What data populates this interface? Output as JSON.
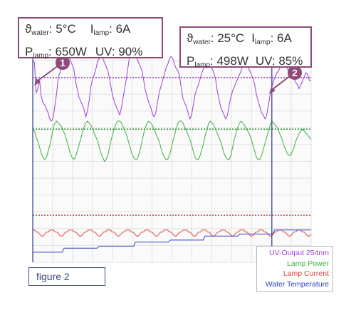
{
  "callouts": [
    {
      "theta_symbol": "ϑ",
      "theta_sub": "water",
      "theta_value": ": 5°C",
      "i_symbol": "I",
      "i_sub": "lamp",
      "i_value": ": 6A",
      "p_symbol": "P",
      "p_sub": "lamp",
      "p_value": ": 650W",
      "uv_text": "UV: 90%",
      "marker": "1"
    },
    {
      "theta_symbol": "ϑ",
      "theta_sub": "water",
      "theta_value": ": 25°C",
      "i_symbol": "I",
      "i_sub": "lamp",
      "i_value": ": 6A",
      "p_symbol": "P",
      "p_sub": "lamp",
      "p_value": ": 498W",
      "uv_text": "UV: 85%",
      "marker": "2"
    }
  ],
  "figure_label": "figure 2",
  "chart_data": {
    "type": "line",
    "title": "",
    "xlabel": "",
    "ylabel": "",
    "grid": true,
    "legend_position": "bottom-right",
    "series": [
      {
        "name": "UV-Output 254nm",
        "color": "#a040d0",
        "reference_line_color": "#a040d0",
        "values": [
          54,
          53,
          38,
          40,
          44,
          36,
          33,
          32,
          30,
          28,
          25,
          24,
          26,
          32,
          38,
          46,
          48,
          54,
          56,
          58,
          57,
          56,
          54,
          52,
          50,
          44,
          40,
          36,
          34,
          32,
          30,
          26,
          29,
          34,
          41,
          45,
          47,
          50,
          54,
          55,
          57,
          55,
          53,
          51,
          49,
          45,
          40,
          36,
          33,
          31,
          29,
          27,
          31,
          36,
          41,
          46,
          52,
          58,
          60,
          59,
          57,
          55,
          53,
          51,
          49,
          44,
          39,
          36,
          33,
          31,
          28,
          26,
          28,
          33,
          38,
          41,
          44,
          47,
          50,
          52,
          55,
          56,
          55,
          52,
          50,
          49,
          46,
          40,
          35,
          33,
          31,
          28,
          25,
          27,
          32,
          37,
          40,
          42,
          45,
          48,
          50,
          53,
          56,
          54,
          52,
          50,
          48,
          45,
          39,
          35,
          31,
          29,
          27,
          25,
          27,
          32,
          36,
          39,
          41,
          43,
          45,
          47,
          49,
          52,
          54,
          53,
          51,
          49,
          47,
          45,
          42,
          37,
          34,
          31,
          28,
          27,
          25,
          27,
          32,
          37,
          41,
          44,
          46,
          48,
          49,
          51,
          53,
          53,
          52,
          50,
          49,
          48,
          47,
          45,
          43,
          42,
          40,
          42,
          44,
          46,
          48,
          47,
          44,
          44
        ]
      },
      {
        "name": "Lamp Power",
        "color": "#3cb043",
        "reference_line_color": "#2a8a2a",
        "values": [
          66,
          65,
          62,
          60,
          57,
          54,
          52,
          51,
          52,
          55,
          58,
          62,
          67,
          69,
          70,
          69,
          68,
          67,
          65,
          63,
          60,
          57,
          54,
          52,
          51,
          52,
          55,
          58,
          61,
          64,
          67,
          69,
          70,
          69,
          68,
          66,
          64,
          62,
          60,
          57,
          54,
          52,
          50,
          51,
          53,
          57,
          61,
          64,
          67,
          69,
          70,
          70,
          69,
          67,
          65,
          63,
          60,
          57,
          54,
          52,
          51,
          51,
          53,
          56,
          60,
          64,
          67,
          69,
          70,
          69,
          68,
          66,
          64,
          62,
          60,
          57,
          54,
          52,
          51,
          51,
          53,
          56,
          60,
          63,
          66,
          69,
          70,
          70,
          69,
          67,
          65,
          63,
          61,
          58,
          55,
          52,
          51,
          51,
          53,
          56,
          59,
          63,
          66,
          69,
          70,
          69,
          68,
          66,
          64,
          62,
          60,
          57,
          54,
          52,
          51,
          51,
          53,
          57,
          61,
          64,
          67,
          69,
          70,
          69,
          68,
          66,
          65,
          63,
          61,
          58,
          55,
          52,
          51,
          51,
          53,
          56,
          59,
          62,
          65,
          68,
          70,
          69,
          68,
          67,
          65,
          63,
          61,
          58,
          56,
          54,
          53,
          53,
          55,
          57,
          60,
          62,
          64,
          65,
          66,
          65,
          64,
          63,
          62,
          61
        ]
      },
      {
        "name": "Lamp Current",
        "color": "#e04040",
        "reference_line_color": "#c83030",
        "values": [
          5,
          5,
          4,
          4,
          3,
          2,
          2,
          3,
          4,
          4,
          5,
          5,
          5,
          4,
          4,
          3,
          2,
          2,
          3,
          4,
          4,
          5,
          5,
          5,
          4,
          4,
          3,
          2,
          2,
          3,
          4,
          4,
          5,
          5,
          5,
          4,
          4,
          3,
          2,
          2,
          3,
          4,
          4,
          5,
          5,
          5,
          4,
          4,
          3,
          2,
          2,
          3,
          4,
          4,
          5,
          5,
          5,
          4,
          4,
          3,
          2,
          2,
          3,
          4,
          4,
          5,
          5,
          5,
          4,
          4,
          3,
          2,
          2,
          3,
          4,
          4,
          5,
          5,
          5,
          4,
          4,
          3,
          2,
          2,
          3,
          4,
          4,
          5,
          5,
          5,
          4,
          4,
          3,
          2,
          2,
          3,
          4,
          4,
          5,
          5,
          5,
          4,
          4,
          3,
          2,
          2,
          3,
          4,
          4,
          5,
          5,
          5,
          4,
          4,
          3,
          2,
          2,
          3,
          4,
          4,
          5,
          5,
          5,
          4,
          4,
          3,
          2,
          2,
          3,
          4,
          4,
          5,
          5,
          5,
          4,
          4,
          3,
          2,
          2,
          3,
          4,
          4,
          5,
          5,
          5,
          4,
          4,
          3,
          2,
          2,
          3,
          4,
          4,
          5,
          5,
          5,
          4,
          4,
          3,
          2,
          2,
          3
        ]
      },
      {
        "name": "Water Temperature",
        "color": "#3040c0",
        "values": [
          5,
          5,
          5,
          5,
          5,
          5,
          5,
          5,
          5,
          5,
          5,
          5,
          5,
          5,
          5,
          5,
          5,
          5,
          7,
          7,
          7,
          7,
          7,
          7,
          7,
          7,
          7,
          7,
          7,
          7,
          7,
          7,
          7,
          7,
          7,
          7,
          7,
          7,
          8,
          8,
          8,
          8,
          8,
          8,
          8,
          8,
          8,
          8,
          8,
          8,
          8,
          8,
          8,
          8,
          8,
          8,
          8,
          8,
          8,
          10,
          10,
          10,
          10,
          10,
          10,
          10,
          10,
          10,
          10,
          10,
          10,
          10,
          10,
          10,
          10,
          10,
          10,
          10,
          10,
          11,
          11,
          11,
          11,
          11,
          11,
          11,
          11,
          11,
          11,
          11,
          11,
          11,
          11,
          11,
          11,
          11,
          11,
          11,
          11,
          13,
          13,
          13,
          13,
          13,
          13,
          13,
          13,
          13,
          13,
          13,
          13,
          13,
          13,
          13,
          13,
          13,
          13,
          13,
          13,
          14,
          14,
          14,
          14,
          14,
          14,
          14,
          14,
          14,
          14,
          14,
          14,
          14,
          14,
          14,
          14,
          14,
          14,
          14,
          14,
          16,
          16,
          16,
          16,
          16,
          16,
          16,
          16,
          16,
          16,
          16,
          16,
          16,
          16,
          16,
          16,
          16,
          16,
          16,
          16,
          16,
          16
        ]
      }
    ],
    "reference_levels": {
      "uv": 62,
      "power": 66,
      "current": 7
    },
    "ylim": [
      0,
      100
    ],
    "markers": [
      {
        "label": "1",
        "x_index": 0
      },
      {
        "label": "2",
        "x_index": 140
      }
    ]
  }
}
